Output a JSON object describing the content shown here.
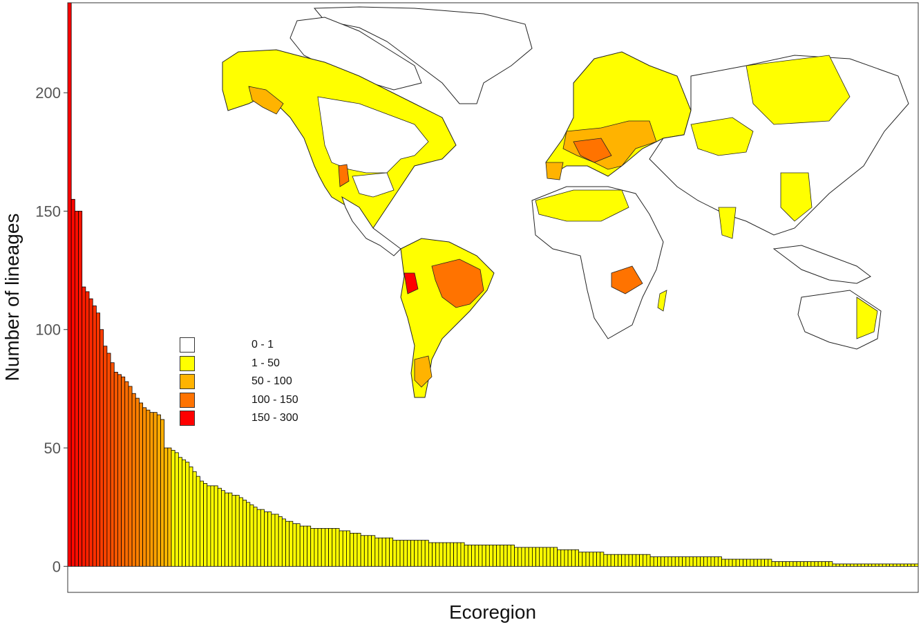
{
  "chart_data": {
    "type": "bar",
    "title": "",
    "xlabel": "Ecoregion",
    "ylabel": "Number of lineages",
    "ylim": [
      -11,
      238
    ],
    "yticks": [
      0,
      50,
      100,
      150,
      200
    ],
    "grid": false,
    "legend_position": "left, inside plot over map",
    "legend": [
      {
        "label": "0 - 1",
        "color": "#ffffff"
      },
      {
        "label": "1 - 50",
        "color": "#ffff00"
      },
      {
        "label": "50 - 100",
        "color": "#ffb300"
      },
      {
        "label": "100 - 150",
        "color": "#ff7300"
      },
      {
        "label": "150 - 300",
        "color": "#ff0000"
      }
    ],
    "values": [
      238,
      155,
      150,
      150,
      118,
      116,
      113,
      110,
      107,
      100,
      93,
      90,
      86,
      82,
      81,
      80,
      78,
      76,
      73,
      71,
      69,
      67,
      66,
      65,
      65,
      64,
      62,
      50,
      50,
      49,
      48,
      46,
      45,
      44,
      42,
      40,
      38,
      36,
      35,
      34,
      34,
      34,
      33,
      32,
      31,
      31,
      30,
      30,
      29,
      28,
      27,
      26,
      25,
      24,
      24,
      23,
      23,
      22,
      22,
      21,
      20,
      19,
      19,
      18,
      18,
      17,
      17,
      17,
      16,
      16,
      16,
      16,
      16,
      16,
      16,
      16,
      15,
      15,
      15,
      14,
      14,
      14,
      13,
      13,
      13,
      13,
      12,
      12,
      12,
      12,
      12,
      11,
      11,
      11,
      11,
      11,
      11,
      11,
      11,
      11,
      11,
      10,
      10,
      10,
      10,
      10,
      10,
      10,
      10,
      10,
      10,
      9,
      9,
      9,
      9,
      9,
      9,
      9,
      9,
      9,
      9,
      9,
      9,
      9,
      9,
      8,
      8,
      8,
      8,
      8,
      8,
      8,
      8,
      8,
      8,
      8,
      8,
      7,
      7,
      7,
      7,
      7,
      7,
      6,
      6,
      6,
      6,
      6,
      6,
      6,
      5,
      5,
      5,
      5,
      5,
      5,
      5,
      5,
      5,
      5,
      5,
      5,
      5,
      4,
      4,
      4,
      4,
      4,
      4,
      4,
      4,
      4,
      4,
      4,
      4,
      4,
      4,
      4,
      4,
      4,
      4,
      4,
      4,
      3,
      3,
      3,
      3,
      3,
      3,
      3,
      3,
      3,
      3,
      3,
      3,
      3,
      3,
      2,
      2,
      2,
      2,
      2,
      2,
      2,
      2,
      2,
      2,
      2,
      2,
      2,
      2,
      2,
      2,
      2,
      1,
      1,
      1,
      1,
      1,
      1,
      1,
      1,
      1,
      1,
      1,
      1,
      1,
      1,
      1,
      1,
      1,
      1,
      1,
      1,
      1,
      1,
      1,
      1
    ],
    "inset": "world map of ecoregions shaded by number of lineages"
  }
}
